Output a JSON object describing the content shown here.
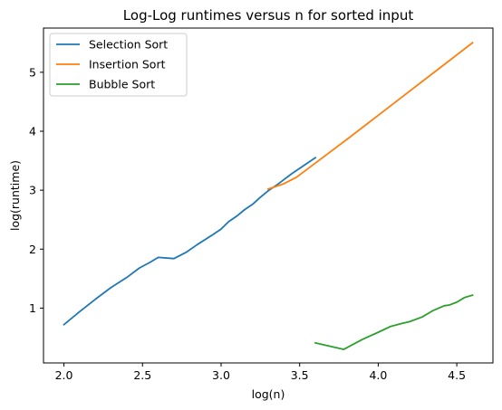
{
  "chart_data": {
    "type": "line",
    "title": "Log-Log runtimes versus n for sorted input",
    "xlabel": "log(n)",
    "ylabel": "log(runtime)",
    "xlim": [
      1.87,
      4.73
    ],
    "ylim": [
      0.07,
      5.75
    ],
    "xticks": [
      2.0,
      2.5,
      3.0,
      3.5,
      4.0,
      4.5
    ],
    "xtick_labels": [
      "2.0",
      "2.5",
      "3.0",
      "3.5",
      "4.0",
      "4.5"
    ],
    "yticks": [
      1,
      2,
      3,
      4,
      5
    ],
    "ytick_labels": [
      "1",
      "2",
      "3",
      "4",
      "5"
    ],
    "grid": false,
    "legend_position": "top-left",
    "series": [
      {
        "name": "Selection Sort",
        "color": "#1f77b4",
        "points": [
          [
            2.0,
            0.72
          ],
          [
            2.1,
            0.94
          ],
          [
            2.2,
            1.15
          ],
          [
            2.3,
            1.35
          ],
          [
            2.4,
            1.52
          ],
          [
            2.48,
            1.68
          ],
          [
            2.55,
            1.78
          ],
          [
            2.6,
            1.86
          ],
          [
            2.7,
            1.84
          ],
          [
            2.78,
            1.95
          ],
          [
            2.85,
            2.08
          ],
          [
            2.95,
            2.25
          ],
          [
            3.0,
            2.34
          ],
          [
            3.05,
            2.47
          ],
          [
            3.1,
            2.56
          ],
          [
            3.15,
            2.67
          ],
          [
            3.2,
            2.76
          ],
          [
            3.25,
            2.88
          ],
          [
            3.3,
            2.99
          ],
          [
            3.35,
            3.08
          ],
          [
            3.4,
            3.18
          ],
          [
            3.45,
            3.28
          ],
          [
            3.5,
            3.37
          ],
          [
            3.55,
            3.46
          ],
          [
            3.6,
            3.55
          ]
        ]
      },
      {
        "name": "Insertion Sort",
        "color": "#ff7f0e",
        "points": [
          [
            3.3,
            3.02
          ],
          [
            3.4,
            3.11
          ],
          [
            3.48,
            3.22
          ],
          [
            3.6,
            3.46
          ],
          [
            3.8,
            3.86
          ],
          [
            4.0,
            4.27
          ],
          [
            4.2,
            4.68
          ],
          [
            4.4,
            5.09
          ],
          [
            4.6,
            5.5
          ]
        ]
      },
      {
        "name": "Bubble Sort",
        "color": "#2ca02c",
        "points": [
          [
            3.6,
            0.41
          ],
          [
            3.78,
            0.3
          ],
          [
            3.9,
            0.47
          ],
          [
            4.0,
            0.59
          ],
          [
            4.08,
            0.69
          ],
          [
            4.15,
            0.74
          ],
          [
            4.2,
            0.77
          ],
          [
            4.28,
            0.85
          ],
          [
            4.35,
            0.96
          ],
          [
            4.42,
            1.04
          ],
          [
            4.45,
            1.05
          ],
          [
            4.5,
            1.1
          ],
          [
            4.55,
            1.18
          ],
          [
            4.6,
            1.22
          ]
        ]
      }
    ]
  }
}
